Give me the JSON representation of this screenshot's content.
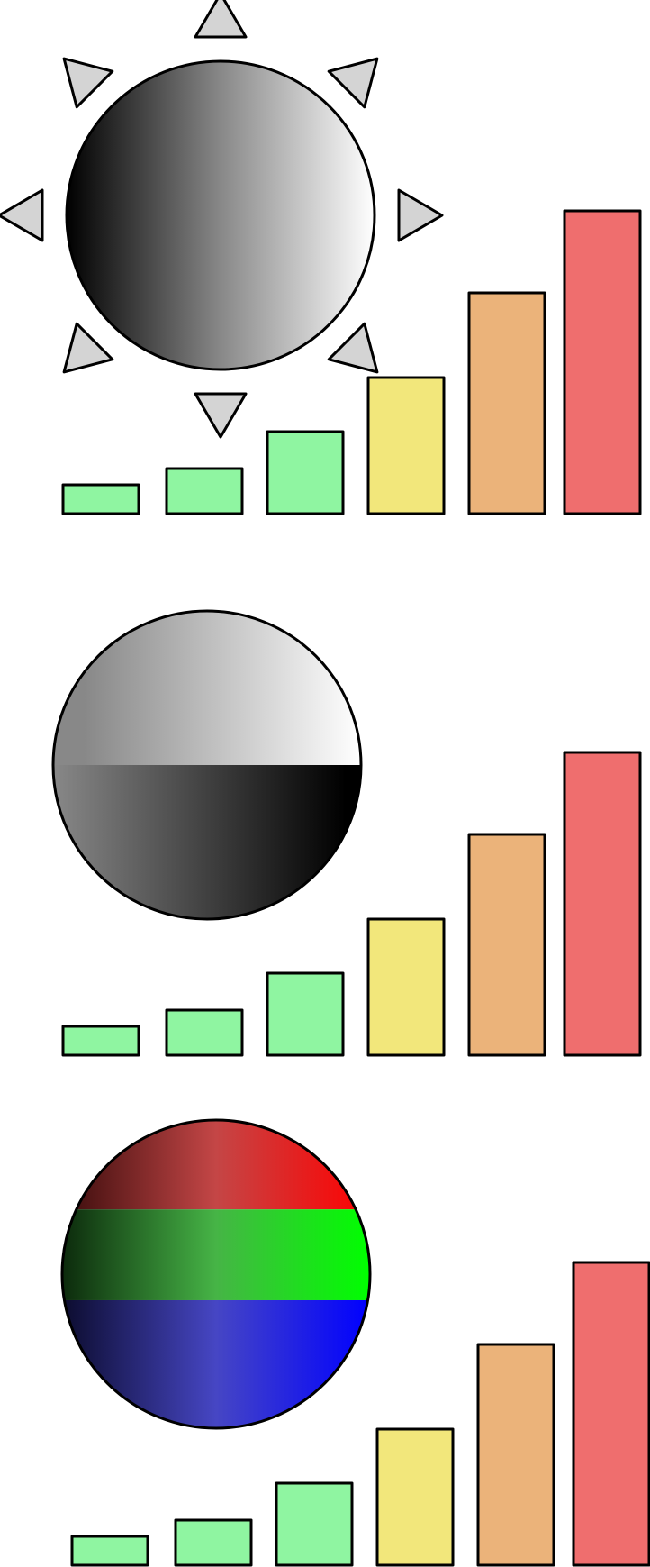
{
  "colors": {
    "outline": "#000000",
    "ray_fill": "#d4d4d4",
    "bar_green": "#8ff5a1",
    "bar_yellow": "#f2e77b",
    "bar_orange": "#ebb37a",
    "bar_red": "#ef6e6e",
    "gray_dark": "#000000",
    "gray_mid": "#888888",
    "gray_light": "#ffffff",
    "red_dark": "#3a0c0c",
    "red_mid": "#c44646",
    "red_bright": "#ff0000",
    "green_dark": "#0c2a0c",
    "green_mid": "#46b446",
    "green_bright": "#00ff00",
    "blue_dark": "#0c0c2e",
    "blue_mid": "#4646c4",
    "blue_bright": "#0000ff"
  },
  "panels": [
    {
      "id": "sun-panel",
      "disk": "gray-gradient",
      "has_rays": true,
      "ray_count": 8,
      "bars": [
        {
          "level": 1,
          "color": "bar_green"
        },
        {
          "level": 2,
          "color": "bar_green"
        },
        {
          "level": 3,
          "color": "bar_green"
        },
        {
          "level": 4,
          "color": "bar_yellow"
        },
        {
          "level": 5,
          "color": "bar_orange"
        },
        {
          "level": 6,
          "color": "bar_red"
        }
      ]
    },
    {
      "id": "split-disk-panel",
      "disk": "split-gray",
      "has_rays": false,
      "bars": [
        {
          "level": 1,
          "color": "bar_green"
        },
        {
          "level": 2,
          "color": "bar_green"
        },
        {
          "level": 3,
          "color": "bar_green"
        },
        {
          "level": 4,
          "color": "bar_yellow"
        },
        {
          "level": 5,
          "color": "bar_orange"
        },
        {
          "level": 6,
          "color": "bar_red"
        }
      ]
    },
    {
      "id": "rgb-disk-panel",
      "disk": "rgb-bands",
      "has_rays": false,
      "bars": [
        {
          "level": 1,
          "color": "bar_green"
        },
        {
          "level": 2,
          "color": "bar_green"
        },
        {
          "level": 3,
          "color": "bar_green"
        },
        {
          "level": 4,
          "color": "bar_yellow"
        },
        {
          "level": 5,
          "color": "bar_orange"
        },
        {
          "level": 6,
          "color": "bar_red"
        }
      ]
    }
  ]
}
